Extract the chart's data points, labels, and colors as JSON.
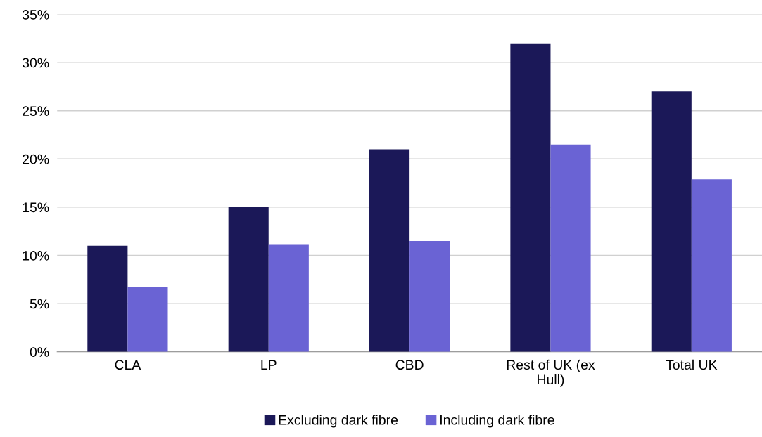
{
  "chart_data": {
    "type": "bar",
    "categories": [
      "CLA",
      "LP",
      "CBD",
      "Rest of UK (ex\nHull)",
      "Total UK"
    ],
    "series": [
      {
        "name": "Excluding dark fibre",
        "color": "#1b1858",
        "values": [
          11.0,
          15.0,
          21.0,
          32.0,
          27.0
        ]
      },
      {
        "name": "Including dark fibre",
        "color": "#6a63d4",
        "values": [
          6.7,
          11.1,
          11.5,
          21.5,
          17.9
        ]
      }
    ],
    "ylim": [
      0,
      35
    ],
    "yticks": [
      {
        "value": 0,
        "label": "0%"
      },
      {
        "value": 5,
        "label": "5%"
      },
      {
        "value": 10,
        "label": "10%"
      },
      {
        "value": 15,
        "label": "15%"
      },
      {
        "value": 20,
        "label": "20%"
      },
      {
        "value": 25,
        "label": "25%"
      },
      {
        "value": 30,
        "label": "30%"
      },
      {
        "value": 35,
        "label": "35%"
      }
    ],
    "grid": "y",
    "legend": "bottom"
  }
}
